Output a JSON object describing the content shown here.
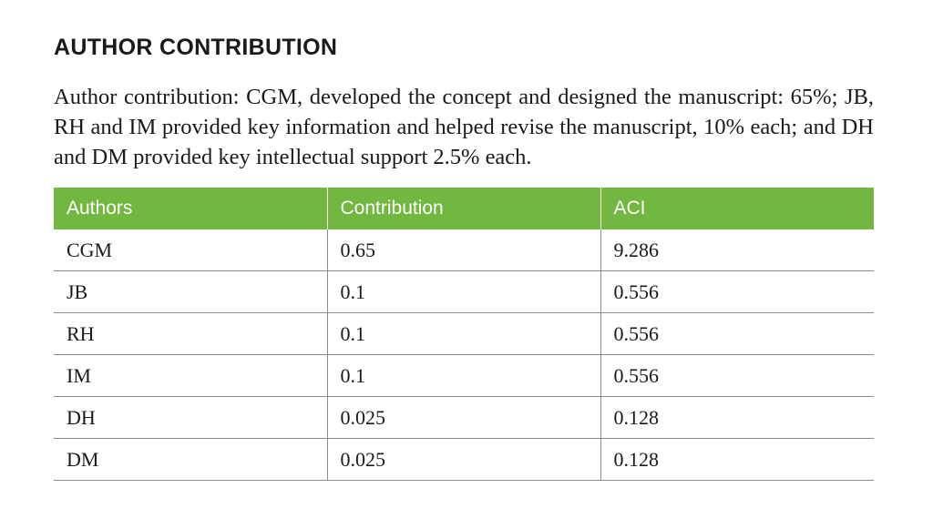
{
  "section": {
    "heading": "AUTHOR CONTRIBUTION",
    "paragraph": "Author contribution: CGM, developed the concept and designed the manuscript: 65%; JB, RH and IM provided key information and helped revise the manuscript, 10% each; and DH and DM provided key intellectual support 2.5% each."
  },
  "table": {
    "header_color": "#72b740",
    "headers": [
      "Authors",
      "Contribution",
      "ACI"
    ],
    "rows": [
      [
        "CGM",
        "0.65",
        "9.286"
      ],
      [
        "JB",
        "0.1",
        "0.556"
      ],
      [
        "RH",
        "0.1",
        "0.556"
      ],
      [
        "IM",
        "0.1",
        "0.556"
      ],
      [
        "DH",
        "0.025",
        "0.128"
      ],
      [
        "DM",
        "0.025",
        "0.128"
      ]
    ]
  }
}
